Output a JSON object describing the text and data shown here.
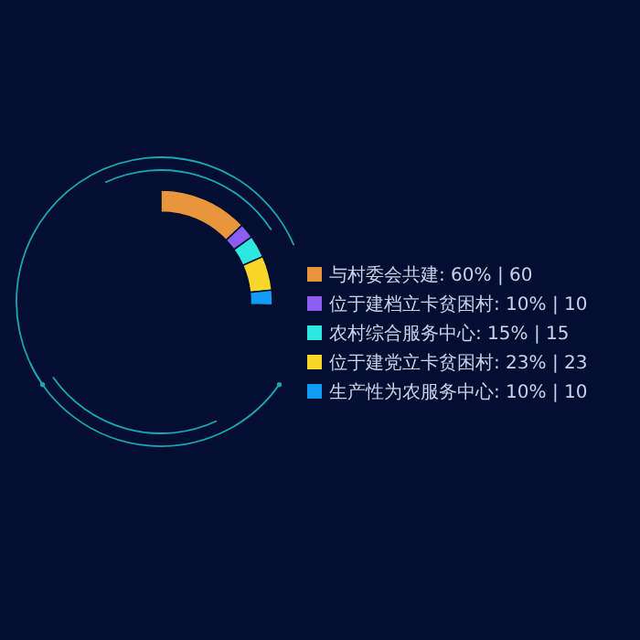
{
  "chart_data": {
    "type": "donut",
    "categories": [
      "与村委会共建",
      "位于建档立卡贫困村",
      "农村综合服务中心",
      "位于建党立卡贫困村",
      "生产性为农服务中心"
    ],
    "values": [
      60,
      10,
      15,
      23,
      10
    ],
    "colors": [
      "#e8963c",
      "#8c5cf0",
      "#2ee8e0",
      "#f8d62a",
      "#129cf8"
    ],
    "value_labels": [
      "60% | 60",
      "10% | 10",
      "15% | 15",
      "23% | 23",
      "10% | 10"
    ],
    "legend": "right"
  }
}
